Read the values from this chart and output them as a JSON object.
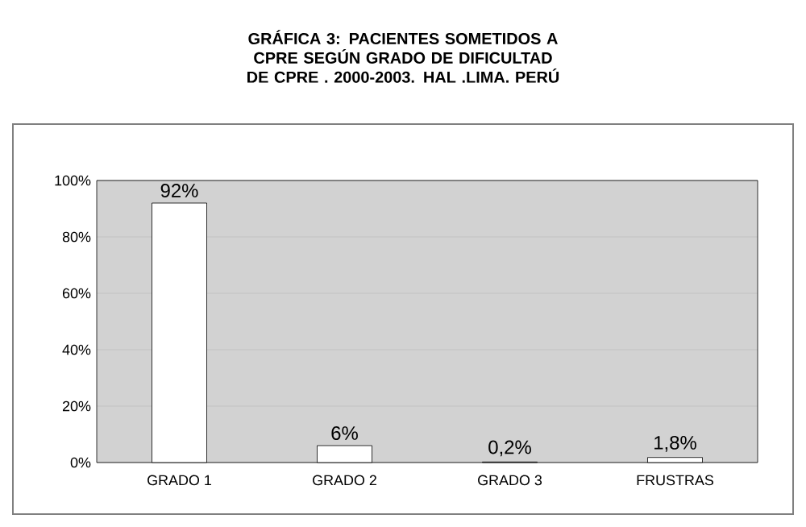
{
  "chart_data": {
    "type": "bar",
    "title": "GRÁFICA 3: PACIENTES SOMETIDOS A CPRE SEGÚN GRADO DE DIFICULTAD DE CPRE . 2000-2003. HAL .LIMA. PERÚ",
    "categories": [
      "GRADO 1",
      "GRADO 2",
      "GRADO 3",
      "FRUSTRAS"
    ],
    "values": [
      92,
      6,
      0.2,
      1.8
    ],
    "value_labels": [
      "92%",
      "6%",
      "0,2%",
      "1,8%"
    ],
    "color": "#ffffff",
    "ylim": [
      0,
      100
    ],
    "yticks": [
      {
        "value": 0,
        "label": "0%"
      },
      {
        "value": 20,
        "label": "20%"
      },
      {
        "value": 40,
        "label": "40%"
      },
      {
        "value": 60,
        "label": "60%"
      },
      {
        "value": 80,
        "label": "80%"
      },
      {
        "value": 100,
        "label": "100%"
      }
    ],
    "grid": "y"
  }
}
